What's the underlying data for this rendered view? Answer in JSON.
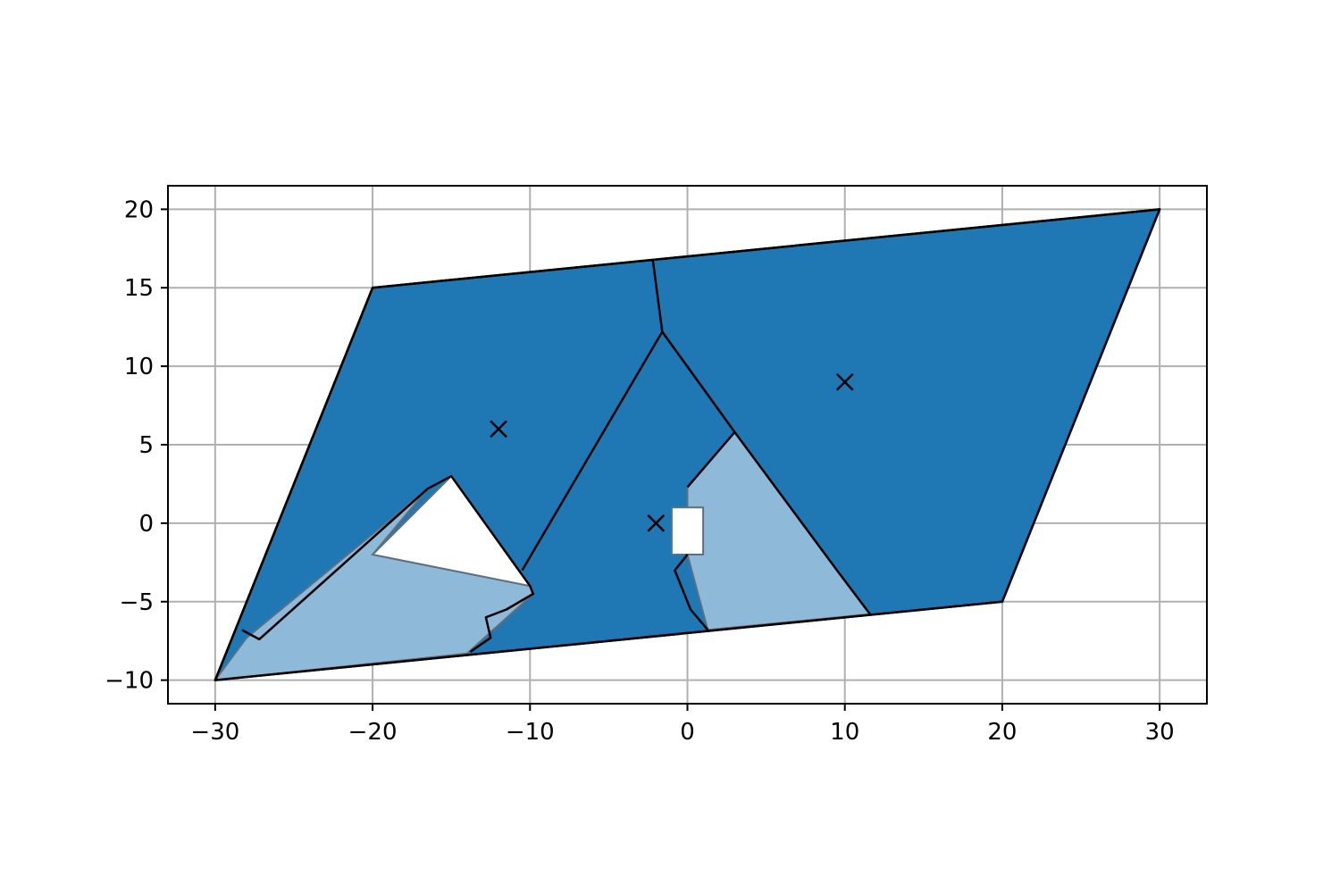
{
  "chart_data": {
    "type": "area",
    "title": "",
    "xlabel": "",
    "ylabel": "",
    "xlim": [
      -33,
      33
    ],
    "ylim": [
      -11.5,
      21.5
    ],
    "xticks": [
      -30,
      -20,
      -10,
      0,
      10,
      20,
      30
    ],
    "yticks": [
      -10,
      -5,
      0,
      5,
      10,
      15,
      20
    ],
    "xtick_labels": [
      "−30",
      "−20",
      "−10",
      "0",
      "10",
      "20",
      "30"
    ],
    "ytick_labels": [
      "−10",
      "−5",
      "0",
      "5",
      "10",
      "15",
      "20"
    ],
    "grid": true,
    "colors": {
      "dark_region": "#1f77b4",
      "light_region": "#8fb9d9",
      "hole": "#ffffff",
      "grid": "#b0b0b0",
      "edge": "#000000",
      "light_edge": "#5f6f7f"
    },
    "domain_boundary": [
      [
        -30,
        -10
      ],
      [
        20,
        -5
      ],
      [
        30,
        20
      ],
      [
        -20,
        15
      ]
    ],
    "holes": [
      {
        "name": "triangle-hole",
        "points": [
          [
            -20,
            -2
          ],
          [
            -15,
            3
          ],
          [
            -10,
            -4
          ]
        ]
      },
      {
        "name": "square-hole",
        "points": [
          [
            -1,
            -2
          ],
          [
            1,
            -2
          ],
          [
            1,
            1
          ],
          [
            -1,
            1
          ]
        ]
      }
    ],
    "light_regions": [
      {
        "name": "lower-left-light-region",
        "points": [
          [
            -30,
            -10
          ],
          [
            -28,
            -7.3
          ],
          [
            -16.5,
            2.2
          ],
          [
            -20,
            -2
          ],
          [
            -10,
            -4
          ],
          [
            -9.8,
            -4.5
          ],
          [
            -14,
            -8.3
          ]
        ]
      },
      {
        "name": "center-light-region",
        "points": [
          [
            0,
            2.3
          ],
          [
            3,
            5.8
          ],
          [
            9.5,
            -3
          ],
          [
            11.6,
            -5.8
          ],
          [
            1.3,
            -6.8
          ],
          [
            0,
            -2
          ]
        ]
      }
    ],
    "region_boundaries": [
      {
        "name": "left-lower-boundary",
        "points": [
          [
            -28.3,
            -6.8
          ],
          [
            -27.2,
            -7.4
          ],
          [
            -16.5,
            2.2
          ],
          [
            -15,
            3
          ],
          [
            -10,
            -4
          ],
          [
            -9.8,
            -4.5
          ],
          [
            -11.5,
            -5.5
          ],
          [
            -12.8,
            -6
          ],
          [
            -12.5,
            -7.3
          ],
          [
            -13.8,
            -8.2
          ]
        ]
      },
      {
        "name": "center-ridge-boundary",
        "points": [
          [
            -10.5,
            -3
          ],
          [
            -1.6,
            12.2
          ],
          [
            -2.2,
            16.8
          ]
        ]
      },
      {
        "name": "right-ridge-boundary",
        "points": [
          [
            -1.6,
            12.2
          ],
          [
            3,
            5.8
          ],
          [
            9.5,
            -3
          ],
          [
            11.6,
            -5.8
          ]
        ]
      },
      {
        "name": "center-light-boundary",
        "points": [
          [
            0,
            2.3
          ],
          [
            3,
            5.8
          ]
        ]
      },
      {
        "name": "square-left-boundary",
        "points": [
          [
            0,
            -2
          ],
          [
            -0.8,
            -3
          ],
          [
            0.2,
            -5.5
          ],
          [
            1.3,
            -6.8
          ]
        ]
      }
    ],
    "series": [
      {
        "marker": "x",
        "points": [
          [
            -12,
            6
          ],
          [
            -2,
            0
          ],
          [
            10,
            9
          ]
        ]
      }
    ]
  }
}
